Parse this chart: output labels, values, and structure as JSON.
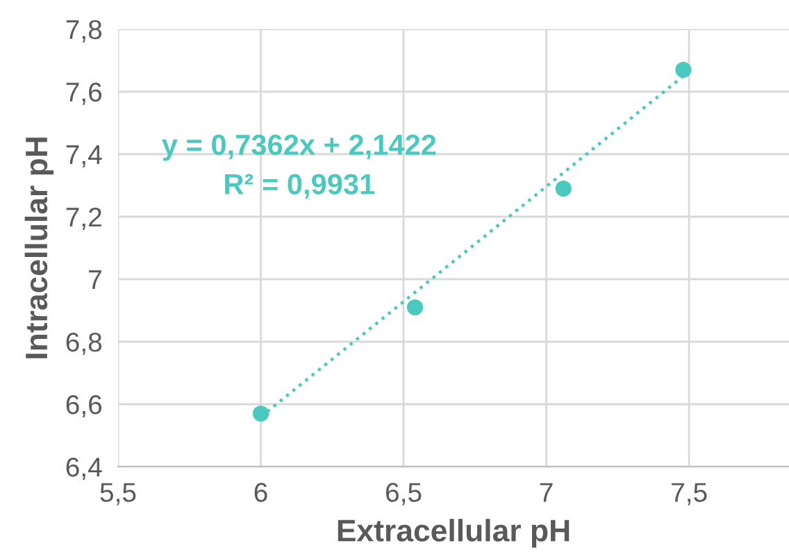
{
  "chart_data": {
    "type": "scatter",
    "xlabel": "Extracellular pH",
    "ylabel": "Intracellular pH",
    "series": [
      {
        "color": "#4bc9bf",
        "x": [
          6.0,
          6.54,
          7.06,
          7.48
        ],
        "values": [
          6.57,
          6.91,
          7.29,
          7.67
        ],
        "marker": "circle"
      },
      {
        "type": "line",
        "color": "#4bc9bf",
        "x": [
          6.0,
          7.48
        ],
        "values": [
          6.56,
          7.65
        ],
        "line_style": "dotted",
        "marker": "none"
      }
    ],
    "annotations": [
      "y = 0,7362x + 2,1422",
      "R² = 0,9931"
    ],
    "xlim": [
      5.5,
      7.85
    ],
    "xticks": [
      {
        "value": 5.5,
        "label": "5,5"
      },
      6,
      {
        "value": 6.5,
        "label": "6,5"
      },
      7,
      {
        "value": 7.5,
        "label": "7,5"
      }
    ],
    "ylim": [
      6.4,
      7.8
    ],
    "yticks": [
      {
        "value": 6.4,
        "label": "6,4"
      },
      {
        "value": 6.6,
        "label": "6,6"
      },
      {
        "value": 6.8,
        "label": "6,8"
      },
      7,
      {
        "value": 7.2,
        "label": "7,2"
      },
      {
        "value": 7.4,
        "label": "7,4"
      },
      {
        "value": 7.6,
        "label": "7,6"
      },
      {
        "value": 7.8,
        "label": "7,8"
      }
    ],
    "grid": true,
    "legend": false
  }
}
